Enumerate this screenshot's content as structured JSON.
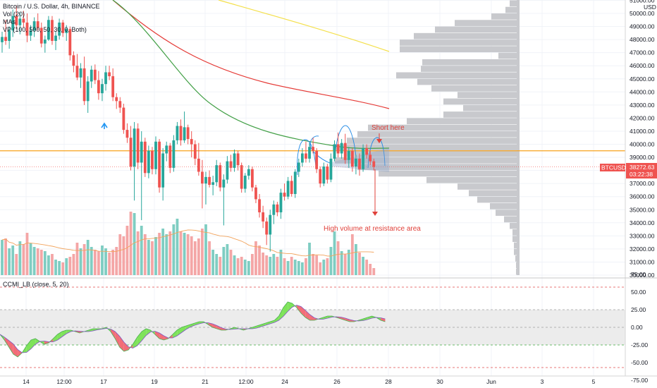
{
  "legend": {
    "title": "Bitcoin / U.S. Dollar, 4h, BINANCE",
    "vol": "Vol (20)",
    "mas": "MAs",
    "vp": "VP (100, 500, 50, 30, 0, Both)",
    "indicator": "CCMI_LB (close, 5, 20)"
  },
  "price_axis": {
    "currency": "USD",
    "ticks": [
      "51000.00",
      "50000.00",
      "49000.00",
      "48000.00",
      "47000.00",
      "46000.00",
      "45000.00",
      "44000.00",
      "43000.00",
      "42000.00",
      "41000.00",
      "40000.00",
      "39000.00",
      "38000.00",
      "37000.00",
      "36000.00",
      "35000.00",
      "34000.00",
      "33000.00",
      "32000.00",
      "31000.00",
      "30000.00"
    ],
    "symbol_badge": "BTCUSD",
    "last_price": "38272.63",
    "countdown": "03:22:38"
  },
  "osc_axis": {
    "ticks": [
      "75.00",
      "50.00",
      "25.00",
      "0.00",
      "-25.00",
      "-50.00",
      "-75.00"
    ]
  },
  "time_axis": {
    "ticks": [
      "14",
      "12:00",
      "17",
      "19",
      "21",
      "12:00",
      "24",
      "26",
      "28",
      "30",
      "Jun",
      "3",
      "5"
    ]
  },
  "annotations": {
    "short": "Short here",
    "volume": "High volume at resistance area"
  },
  "colors": {
    "up": "#26a69a",
    "down": "#ef5350",
    "up_vol": "#7fcdc2",
    "down_vol": "#f4a6a6",
    "resistance": "#f7a21b",
    "ma_green": "#43a047",
    "ma_red": "#e53935",
    "ma_yellow": "#f4e04d",
    "profile": "#c8c9cd",
    "annotation": "#e0403a",
    "marker": "#2196f3"
  },
  "chart_data": {
    "type": "candlestick",
    "interval": "4h",
    "resistance": 39500,
    "last_price": 38272.63,
    "ylim": [
      30000,
      51500
    ],
    "candles": [
      {
        "o": 47800,
        "h": 48600,
        "l": 47000,
        "c": 48200
      },
      {
        "o": 48200,
        "h": 49500,
        "l": 47600,
        "c": 47900
      },
      {
        "o": 47900,
        "h": 49000,
        "l": 47300,
        "c": 48700
      },
      {
        "o": 48700,
        "h": 50300,
        "l": 48200,
        "c": 49800
      },
      {
        "o": 49800,
        "h": 50600,
        "l": 48800,
        "c": 49100
      },
      {
        "o": 49100,
        "h": 50100,
        "l": 48400,
        "c": 49600
      },
      {
        "o": 49600,
        "h": 50200,
        "l": 48900,
        "c": 49300
      },
      {
        "o": 49300,
        "h": 50000,
        "l": 47800,
        "c": 48300
      },
      {
        "o": 48300,
        "h": 49100,
        "l": 47900,
        "c": 48700
      },
      {
        "o": 48700,
        "h": 49700,
        "l": 48200,
        "c": 49400
      },
      {
        "o": 49400,
        "h": 50000,
        "l": 48700,
        "c": 48900
      },
      {
        "o": 48900,
        "h": 49300,
        "l": 47400,
        "c": 47700
      },
      {
        "o": 47700,
        "h": 48300,
        "l": 47000,
        "c": 48000
      },
      {
        "o": 48000,
        "h": 49800,
        "l": 47900,
        "c": 49500
      },
      {
        "o": 49500,
        "h": 49800,
        "l": 47600,
        "c": 47900
      },
      {
        "o": 47900,
        "h": 48600,
        "l": 47200,
        "c": 48300
      },
      {
        "o": 48300,
        "h": 49600,
        "l": 48000,
        "c": 49300
      },
      {
        "o": 49300,
        "h": 49500,
        "l": 48200,
        "c": 48500
      },
      {
        "o": 48500,
        "h": 49100,
        "l": 47900,
        "c": 48800
      },
      {
        "o": 48800,
        "h": 49000,
        "l": 46400,
        "c": 46800
      },
      {
        "o": 46800,
        "h": 47100,
        "l": 45500,
        "c": 46000
      },
      {
        "o": 46000,
        "h": 46900,
        "l": 44900,
        "c": 45100
      },
      {
        "o": 45100,
        "h": 46200,
        "l": 44300,
        "c": 45800
      },
      {
        "o": 45800,
        "h": 46700,
        "l": 43000,
        "c": 43300
      },
      {
        "o": 43300,
        "h": 45200,
        "l": 42400,
        "c": 44800
      },
      {
        "o": 44800,
        "h": 46000,
        "l": 44300,
        "c": 45700
      },
      {
        "o": 45700,
        "h": 46100,
        "l": 44600,
        "c": 44900
      },
      {
        "o": 44900,
        "h": 45600,
        "l": 43400,
        "c": 43900
      },
      {
        "o": 43900,
        "h": 45000,
        "l": 43300,
        "c": 44600
      },
      {
        "o": 44600,
        "h": 46000,
        "l": 44100,
        "c": 45500
      },
      {
        "o": 45500,
        "h": 46000,
        "l": 44900,
        "c": 45200
      },
      {
        "o": 45200,
        "h": 45800,
        "l": 43300,
        "c": 43600
      },
      {
        "o": 43600,
        "h": 43900,
        "l": 42700,
        "c": 43300
      },
      {
        "o": 43300,
        "h": 43600,
        "l": 42400,
        "c": 42800
      },
      {
        "o": 42800,
        "h": 43100,
        "l": 40800,
        "c": 41100
      },
      {
        "o": 41100,
        "h": 41600,
        "l": 40100,
        "c": 40500
      },
      {
        "o": 40500,
        "h": 41400,
        "l": 38000,
        "c": 38300
      },
      {
        "o": 38300,
        "h": 41700,
        "l": 35700,
        "c": 41200
      },
      {
        "o": 41200,
        "h": 41600,
        "l": 38100,
        "c": 38600
      },
      {
        "o": 38600,
        "h": 41000,
        "l": 34200,
        "c": 40200
      },
      {
        "o": 40200,
        "h": 40500,
        "l": 37500,
        "c": 37800
      },
      {
        "o": 37800,
        "h": 39900,
        "l": 37400,
        "c": 39500
      },
      {
        "o": 39500,
        "h": 39800,
        "l": 37700,
        "c": 38100
      },
      {
        "o": 38100,
        "h": 40600,
        "l": 37700,
        "c": 40200
      },
      {
        "o": 40200,
        "h": 40400,
        "l": 36300,
        "c": 36700
      },
      {
        "o": 36700,
        "h": 39700,
        "l": 35700,
        "c": 39300
      },
      {
        "o": 39300,
        "h": 40200,
        "l": 38700,
        "c": 39900
      },
      {
        "o": 39900,
        "h": 40100,
        "l": 37800,
        "c": 38200
      },
      {
        "o": 38200,
        "h": 40700,
        "l": 37900,
        "c": 40300
      },
      {
        "o": 40300,
        "h": 41700,
        "l": 40000,
        "c": 41400
      },
      {
        "o": 41400,
        "h": 41900,
        "l": 39900,
        "c": 40300
      },
      {
        "o": 40300,
        "h": 42500,
        "l": 40100,
        "c": 41300
      },
      {
        "o": 41300,
        "h": 41500,
        "l": 40000,
        "c": 40400
      },
      {
        "o": 40400,
        "h": 41000,
        "l": 39000,
        "c": 40000
      },
      {
        "o": 40000,
        "h": 40300,
        "l": 38400,
        "c": 38900
      },
      {
        "o": 38900,
        "h": 40100,
        "l": 37600,
        "c": 37900
      },
      {
        "o": 37900,
        "h": 38800,
        "l": 35100,
        "c": 37000
      },
      {
        "o": 37000,
        "h": 37900,
        "l": 35400,
        "c": 37500
      },
      {
        "o": 37500,
        "h": 38000,
        "l": 36700,
        "c": 36900
      },
      {
        "o": 36900,
        "h": 37600,
        "l": 36100,
        "c": 37100
      },
      {
        "o": 37100,
        "h": 38800,
        "l": 36800,
        "c": 38400
      },
      {
        "o": 38400,
        "h": 38600,
        "l": 36400,
        "c": 36700
      },
      {
        "o": 36700,
        "h": 37700,
        "l": 33800,
        "c": 37300
      },
      {
        "o": 37300,
        "h": 39100,
        "l": 37000,
        "c": 38700
      },
      {
        "o": 38700,
        "h": 39200,
        "l": 37900,
        "c": 38200
      },
      {
        "o": 38200,
        "h": 39600,
        "l": 37900,
        "c": 39300
      },
      {
        "o": 39300,
        "h": 39500,
        "l": 38000,
        "c": 38400
      },
      {
        "o": 38400,
        "h": 38600,
        "l": 36300,
        "c": 36600
      },
      {
        "o": 36600,
        "h": 37800,
        "l": 36300,
        "c": 37600
      },
      {
        "o": 37600,
        "h": 38400,
        "l": 37300,
        "c": 38100
      },
      {
        "o": 38100,
        "h": 38300,
        "l": 36400,
        "c": 36700
      },
      {
        "o": 36700,
        "h": 36900,
        "l": 35500,
        "c": 35800
      },
      {
        "o": 35800,
        "h": 36200,
        "l": 34400,
        "c": 34800
      },
      {
        "o": 34800,
        "h": 35300,
        "l": 33600,
        "c": 34100
      },
      {
        "o": 34100,
        "h": 34400,
        "l": 32300,
        "c": 33100
      },
      {
        "o": 33100,
        "h": 35000,
        "l": 31800,
        "c": 34600
      },
      {
        "o": 34600,
        "h": 35700,
        "l": 33900,
        "c": 35400
      },
      {
        "o": 35400,
        "h": 35600,
        "l": 34500,
        "c": 34800
      },
      {
        "o": 34800,
        "h": 36600,
        "l": 34300,
        "c": 36300
      },
      {
        "o": 36300,
        "h": 37000,
        "l": 35700,
        "c": 36000
      },
      {
        "o": 36000,
        "h": 37500,
        "l": 35800,
        "c": 37200
      },
      {
        "o": 37200,
        "h": 37600,
        "l": 36000,
        "c": 36200
      },
      {
        "o": 36200,
        "h": 38100,
        "l": 35900,
        "c": 37900
      },
      {
        "o": 37900,
        "h": 38900,
        "l": 37500,
        "c": 38600
      },
      {
        "o": 38600,
        "h": 39700,
        "l": 38300,
        "c": 39300
      },
      {
        "o": 39300,
        "h": 40200,
        "l": 38600,
        "c": 38900
      },
      {
        "o": 38900,
        "h": 40100,
        "l": 38600,
        "c": 39800
      },
      {
        "o": 39800,
        "h": 40500,
        "l": 39300,
        "c": 39500
      },
      {
        "o": 39500,
        "h": 39700,
        "l": 37800,
        "c": 38100
      },
      {
        "o": 38100,
        "h": 38300,
        "l": 36700,
        "c": 37000
      },
      {
        "o": 37000,
        "h": 38600,
        "l": 36800,
        "c": 38300
      },
      {
        "o": 38300,
        "h": 38500,
        "l": 37000,
        "c": 37300
      },
      {
        "o": 37300,
        "h": 39300,
        "l": 37100,
        "c": 38900
      },
      {
        "o": 38900,
        "h": 40300,
        "l": 38700,
        "c": 40000
      },
      {
        "o": 40000,
        "h": 40900,
        "l": 39000,
        "c": 39300
      },
      {
        "o": 39300,
        "h": 40400,
        "l": 38900,
        "c": 40100
      },
      {
        "o": 40100,
        "h": 40800,
        "l": 38500,
        "c": 38800
      },
      {
        "o": 38800,
        "h": 39800,
        "l": 38200,
        "c": 39500
      },
      {
        "o": 39500,
        "h": 39700,
        "l": 37900,
        "c": 38300
      },
      {
        "o": 38300,
        "h": 39200,
        "l": 37700,
        "c": 38900
      },
      {
        "o": 38900,
        "h": 39300,
        "l": 37600,
        "c": 38100
      },
      {
        "o": 38100,
        "h": 40000,
        "l": 37900,
        "c": 39700
      },
      {
        "o": 39700,
        "h": 40000,
        "l": 38900,
        "c": 39200
      },
      {
        "o": 39200,
        "h": 39500,
        "l": 38400,
        "c": 38700
      },
      {
        "o": 38700,
        "h": 38900,
        "l": 38000,
        "c": 38273
      }
    ]
  }
}
